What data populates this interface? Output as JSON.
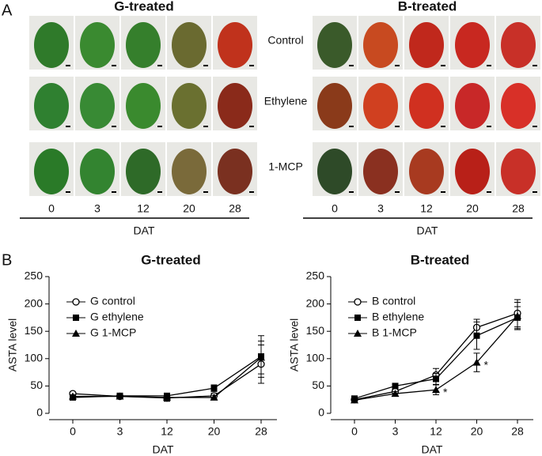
{
  "panel_a": {
    "label": "A",
    "groups": [
      {
        "title": "G-treated",
        "days": [
          "0",
          "3",
          "12",
          "20",
          "28"
        ],
        "axis_label": "DAT"
      },
      {
        "title": "B-treated",
        "days": [
          "0",
          "3",
          "12",
          "20",
          "28"
        ],
        "axis_label": "DAT"
      }
    ],
    "rows": [
      "Control",
      "Ethylene",
      "1-MCP"
    ]
  },
  "panel_b": {
    "label": "B"
  },
  "chart_data": [
    {
      "type": "line",
      "title": "G-treated",
      "xlabel": "DAT",
      "ylabel": "ASTA level",
      "categories": [
        "0",
        "3",
        "12",
        "20",
        "28"
      ],
      "ylim": [
        0,
        250
      ],
      "yticks": [
        0,
        50,
        100,
        150,
        200,
        250
      ],
      "series": [
        {
          "name": "G control",
          "color": "#000000",
          "marker": "open-circle",
          "values": [
            36,
            31,
            28,
            32,
            90
          ],
          "errors": [
            3,
            4,
            5,
            5,
            35
          ]
        },
        {
          "name": "G ethylene",
          "color": "#000000",
          "marker": "square",
          "values": [
            29,
            32,
            32,
            46,
            104
          ],
          "errors": [
            3,
            4,
            4,
            6,
            38
          ]
        },
        {
          "name": "G 1-MCP",
          "color": "#000000",
          "marker": "triangle",
          "values": [
            31,
            31,
            29,
            29,
            102
          ],
          "errors": [
            3,
            4,
            7,
            4,
            30
          ]
        }
      ]
    },
    {
      "type": "line",
      "title": "B-treated",
      "xlabel": "DAT",
      "ylabel": "ASTA level",
      "categories": [
        "0",
        "3",
        "12",
        "20",
        "28"
      ],
      "ylim": [
        0,
        250
      ],
      "yticks": [
        0,
        50,
        100,
        150,
        200,
        250
      ],
      "series": [
        {
          "name": "B control",
          "color": "#000000",
          "marker": "open-circle",
          "values": [
            25,
            40,
            70,
            157,
            183
          ],
          "errors": [
            3,
            4,
            12,
            15,
            25
          ]
        },
        {
          "name": "B ethylene",
          "color": "#000000",
          "marker": "square",
          "values": [
            27,
            50,
            63,
            142,
            175
          ],
          "errors": [
            3,
            4,
            10,
            25,
            20
          ]
        },
        {
          "name": "B 1-MCP",
          "color": "#000000",
          "marker": "triangle",
          "values": [
            24,
            36,
            43,
            93,
            178
          ],
          "errors": [
            3,
            4,
            9,
            17,
            25
          ]
        }
      ],
      "annotations": [
        {
          "text": "*",
          "series": "B 1-MCP",
          "x": "12"
        },
        {
          "text": "*",
          "series": "B 1-MCP",
          "x": "20"
        }
      ]
    }
  ]
}
